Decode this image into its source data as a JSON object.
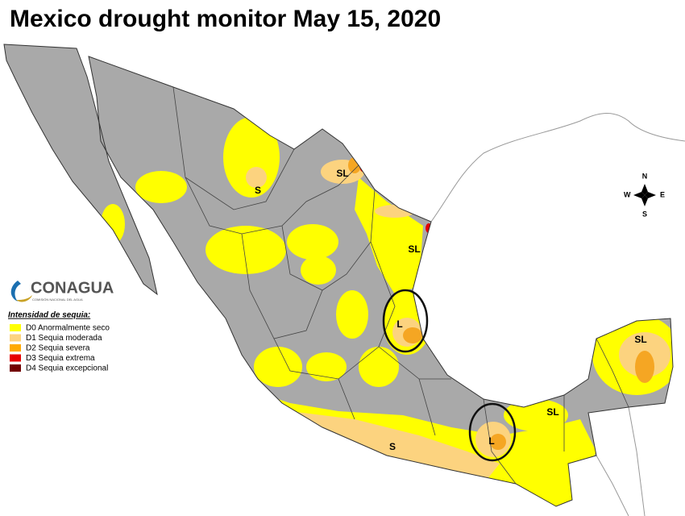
{
  "title": "Mexico drought monitor May 15, 2020",
  "logo": {
    "name": "CONAGUA",
    "subtitle": "COMISIÓN NACIONAL DEL AGUA"
  },
  "legend": {
    "title": "Intensidad de sequia:",
    "items": [
      {
        "label": "D0 Anormalmente seco",
        "color": "#ffff00"
      },
      {
        "label": "D1 Sequia moderada",
        "color": "#fcd37f"
      },
      {
        "label": "D2 Sequia severa",
        "color": "#ffaa00"
      },
      {
        "label": "D3 Sequia extrema",
        "color": "#e60000"
      },
      {
        "label": "D4 Sequia excepcional",
        "color": "#730000"
      }
    ]
  },
  "map_labels": [
    "S",
    "SL",
    "SL",
    "L",
    "S",
    "L",
    "SL",
    "SL"
  ],
  "compass": {
    "north": "N",
    "south": "S",
    "east": "E",
    "west": "W"
  }
}
